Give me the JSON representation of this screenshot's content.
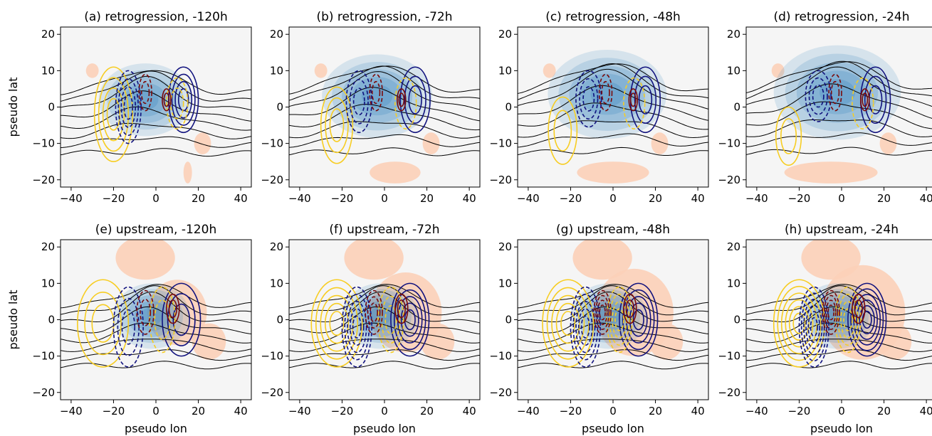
{
  "chart_data": {
    "type": "contour",
    "grid": "2x4 panels",
    "xlabel": "pseudo lon",
    "ylabel": "pseudo lat",
    "xlim": [
      -45,
      45
    ],
    "ylim": [
      -22,
      22
    ],
    "xticks": [
      -40,
      -20,
      0,
      20,
      40
    ],
    "yticks": [
      -20,
      -10,
      0,
      10,
      20
    ],
    "colors": {
      "blue_fill": "#3b86c0",
      "orange_fill": "#fcd0b8",
      "navy_contour": "#11127e",
      "darkred_contour": "#7a0a0a",
      "yellow_contour": "#f7cd22",
      "black_contour": "#000000",
      "panel_bg": "#f5f5f5"
    },
    "panels": [
      {
        "title": "(a) retrogression, -120h",
        "regime": "retrogression",
        "lead_hours": -120
      },
      {
        "title": "(b) retrogression, -72h",
        "regime": "retrogression",
        "lead_hours": -72
      },
      {
        "title": "(c) retrogression, -48h",
        "regime": "retrogression",
        "lead_hours": -48
      },
      {
        "title": "(d) retrogression, -24h",
        "regime": "retrogression",
        "lead_hours": -24
      },
      {
        "title": "(e) upstream, -120h",
        "regime": "upstream",
        "lead_hours": -120
      },
      {
        "title": "(f) upstream, -72h",
        "regime": "upstream",
        "lead_hours": -72
      },
      {
        "title": "(g) upstream, -48h",
        "regime": "upstream",
        "lead_hours": -48
      },
      {
        "title": "(h) upstream, -24h",
        "regime": "upstream",
        "lead_hours": -24
      }
    ]
  }
}
